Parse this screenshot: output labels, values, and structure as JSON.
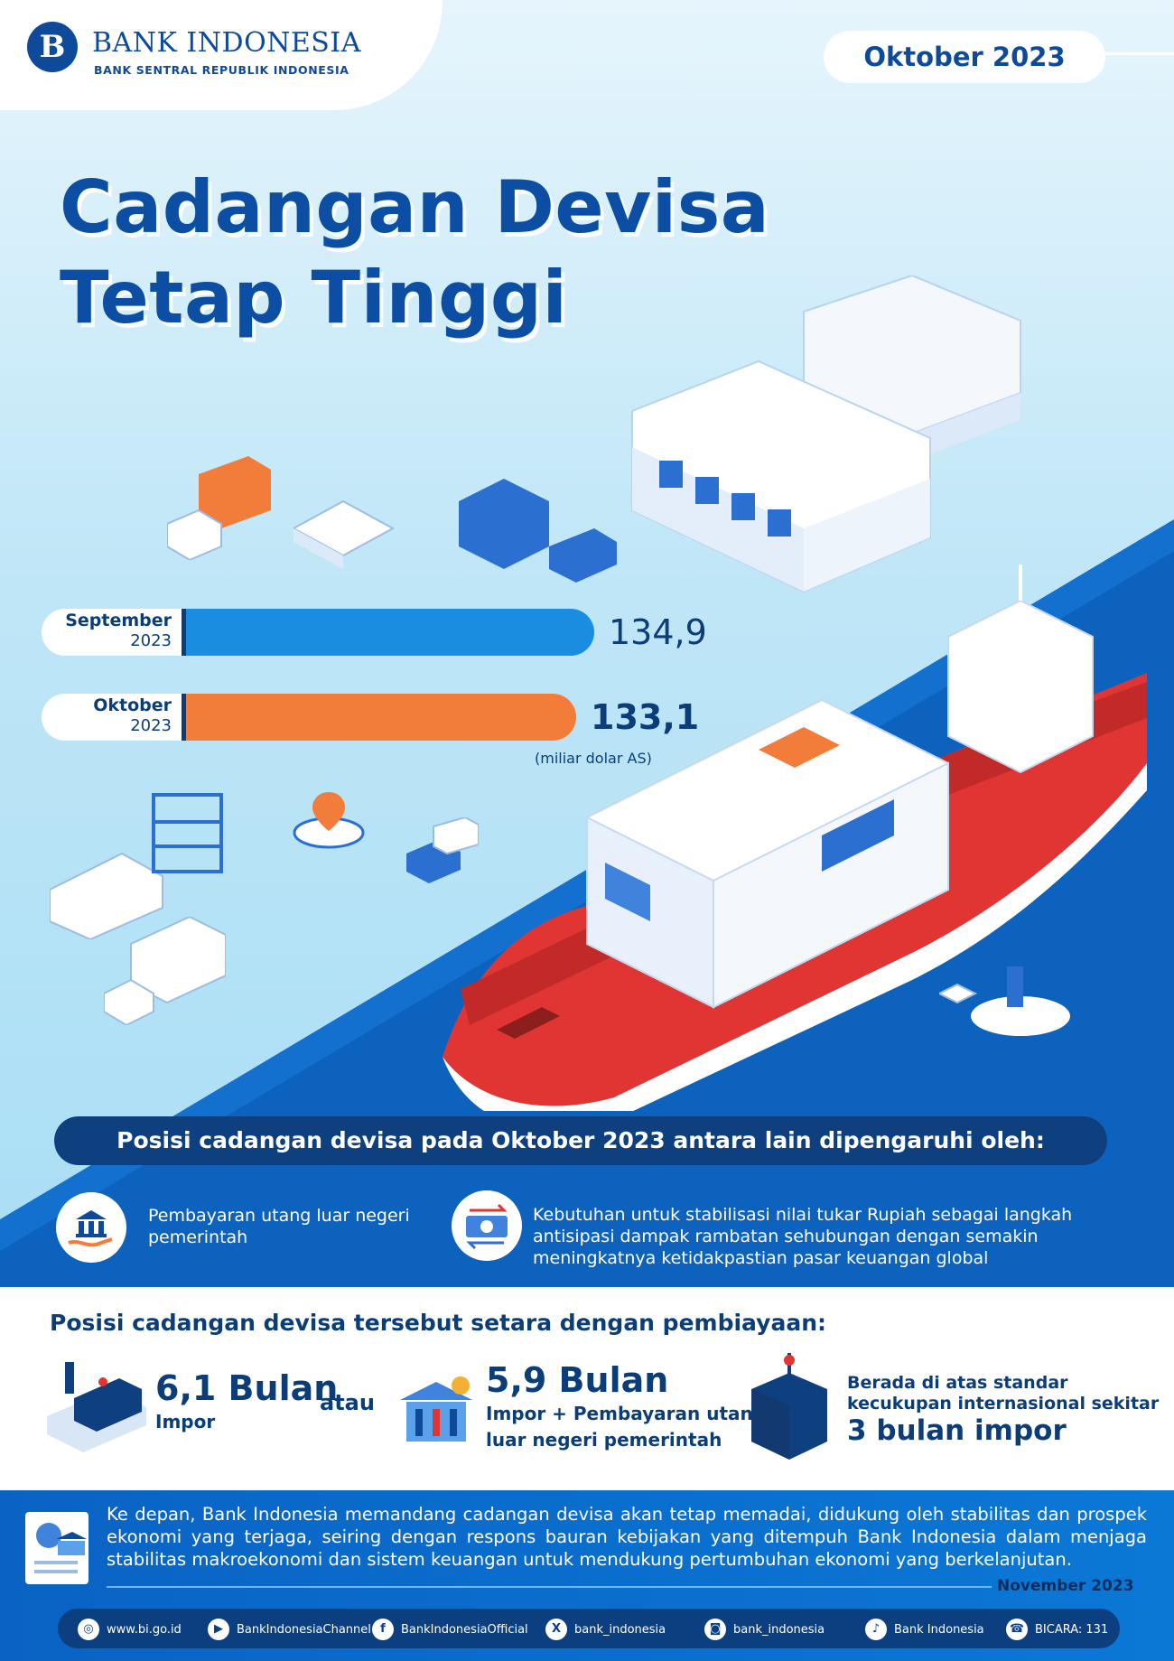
{
  "header": {
    "logo_mark": "B",
    "bank_name": "BANK INDONESIA",
    "bank_subtitle": "BANK SENTRAL REPUBLIK INDONESIA",
    "period": "Oktober 2023"
  },
  "title_line1": "Cadangan Devisa",
  "title_line2": "Tetap Tinggi",
  "chart_data": {
    "type": "bar",
    "orientation": "horizontal",
    "categories": [
      "September 2023",
      "Oktober 2023"
    ],
    "category_labels": [
      {
        "month": "September",
        "year": "2023"
      },
      {
        "month": "Oktober",
        "year": "2023"
      }
    ],
    "values": [
      134.9,
      133.1
    ],
    "value_labels": [
      "134,9",
      "133,1"
    ],
    "unit": "(miliar dolar AS)",
    "colors": [
      "#1a8de0",
      "#f27c3a"
    ],
    "grid": false
  },
  "factors": {
    "heading": "Posisi cadangan devisa pada Oktober 2023 antara lain dipengaruhi oleh:",
    "items": [
      {
        "icon": "bank-hand-icon",
        "text": "Pembayaran utang luar negeri pemerintah"
      },
      {
        "icon": "currency-exchange-icon",
        "text": "Kebutuhan untuk stabilisasi nilai tukar Rupiah sebagai langkah antisipasi dampak rambatan sehubungan dengan semakin meningkatnya ketidakpastian pasar keuangan global"
      }
    ]
  },
  "financing": {
    "heading": "Posisi cadangan devisa tersebut setara dengan pembiayaan:",
    "item1": {
      "value": "6,1 Bulan",
      "label": "Impor",
      "icon": "cargo-ship-icon"
    },
    "connector": "atau",
    "item2": {
      "value": "5,9 Bulan",
      "label_line1": "Impor + Pembayaran utang",
      "label_line2": "luar negeri pemerintah",
      "icon": "bank-building-icon"
    },
    "item3": {
      "line1": "Berada di atas standar",
      "line2": "kecukupan internasional sekitar",
      "emphasis": "3 bulan impor",
      "icon": "container-crane-icon"
    }
  },
  "outlook": {
    "text": "Ke depan, Bank Indonesia memandang cadangan devisa akan tetap memadai, didukung oleh stabilitas dan prospek ekonomi yang terjaga, seiring dengan respons bauran kebijakan yang ditempuh Bank Indonesia dalam menjaga stabilitas makroekonomi dan sistem keuangan untuk mendukung pertumbuhan ekonomi yang berkelanjutan.",
    "date": "November 2023",
    "icon": "document-bank-icon"
  },
  "social": [
    {
      "icon": "globe-icon",
      "glyph": "◎",
      "label": "www.bi.go.id"
    },
    {
      "icon": "youtube-icon",
      "glyph": "▶",
      "label": "BankIndonesiaChannel"
    },
    {
      "icon": "facebook-icon",
      "glyph": "f",
      "label": "BankIndonesiaOfficial"
    },
    {
      "icon": "x-icon",
      "glyph": "X",
      "label": "bank_indonesia"
    },
    {
      "icon": "instagram-icon",
      "glyph": "◙",
      "label": "bank_indonesia"
    },
    {
      "icon": "tiktok-icon",
      "glyph": "♪",
      "label": "Bank Indonesia"
    },
    {
      "icon": "bicara-icon",
      "glyph": "☎",
      "label": "BICARA: 131"
    }
  ]
}
